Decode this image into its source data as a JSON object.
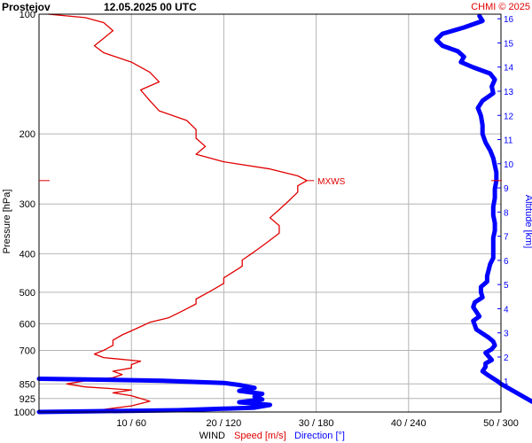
{
  "chart_data": {
    "type": "line",
    "title": {
      "station": "Prostejov",
      "datetime": "12.05.2025 00 UTC"
    },
    "credit": "CHMI © 2025",
    "y_axis": {
      "label": "Pressure [hPa]",
      "scale": "log",
      "range_hpa": [
        1000,
        100
      ],
      "ticks": [
        100,
        200,
        300,
        400,
        500,
        600,
        700,
        850,
        925,
        1000
      ]
    },
    "right_axis": {
      "label": "Altitude [km]",
      "ticks_km": [
        1,
        2,
        3,
        4,
        5,
        6,
        7,
        8,
        9,
        10,
        11,
        12,
        13,
        14,
        15,
        16
      ]
    },
    "x_axis": {
      "label_prefix": "WIND",
      "label_speed": "Speed [m/s]",
      "label_direction": "Direction [°]",
      "speed_range_ms": [
        0,
        50
      ],
      "direction_range_deg": [
        0,
        300
      ],
      "ticks": [
        "10 / 60",
        "20 / 120",
        "30 / 180",
        "40 / 240",
        "50 / 300"
      ]
    },
    "grid": true,
    "max_wind_marker": {
      "label": "MXWS",
      "pressure_hpa": 262,
      "speed_ms": 29
    },
    "colors": {
      "speed": "#e00000",
      "direction": "#0000ff",
      "credit": "#e00000",
      "grid": "#b4b4b4"
    },
    "series": [
      {
        "name": "Speed [m/s]",
        "color": "#e00000",
        "points": [
          [
            1000,
            3
          ],
          [
            985,
            7
          ],
          [
            965,
            10
          ],
          [
            940,
            12
          ],
          [
            925,
            11
          ],
          [
            910,
            10
          ],
          [
            895,
            8
          ],
          [
            880,
            10
          ],
          [
            865,
            5
          ],
          [
            850,
            3
          ],
          [
            835,
            5
          ],
          [
            820,
            8
          ],
          [
            805,
            9
          ],
          [
            790,
            8
          ],
          [
            775,
            10
          ],
          [
            760,
            10
          ],
          [
            745,
            11
          ],
          [
            730,
            7
          ],
          [
            715,
            6
          ],
          [
            700,
            7
          ],
          [
            680,
            8
          ],
          [
            660,
            8
          ],
          [
            640,
            9
          ],
          [
            625,
            10
          ],
          [
            610,
            11
          ],
          [
            595,
            12
          ],
          [
            580,
            14
          ],
          [
            565,
            15
          ],
          [
            550,
            16
          ],
          [
            535,
            17
          ],
          [
            520,
            17
          ],
          [
            505,
            18
          ],
          [
            490,
            19
          ],
          [
            475,
            20
          ],
          [
            460,
            20
          ],
          [
            445,
            21
          ],
          [
            430,
            22
          ],
          [
            415,
            22
          ],
          [
            400,
            23
          ],
          [
            385,
            24
          ],
          [
            370,
            25
          ],
          [
            355,
            26
          ],
          [
            340,
            26
          ],
          [
            325,
            25
          ],
          [
            310,
            26
          ],
          [
            295,
            27
          ],
          [
            280,
            28
          ],
          [
            270,
            28
          ],
          [
            262,
            29
          ],
          [
            255,
            28
          ],
          [
            245,
            25
          ],
          [
            235,
            20
          ],
          [
            225,
            17
          ],
          [
            215,
            18
          ],
          [
            205,
            17
          ],
          [
            195,
            17
          ],
          [
            185,
            16
          ],
          [
            175,
            13
          ],
          [
            165,
            12
          ],
          [
            155,
            11
          ],
          [
            148,
            13
          ],
          [
            140,
            12
          ],
          [
            132,
            10
          ],
          [
            125,
            7
          ],
          [
            120,
            6
          ],
          [
            115,
            7
          ],
          [
            110,
            8
          ],
          [
            105,
            7
          ],
          [
            102,
            5
          ],
          [
            100,
            1
          ]
        ]
      },
      {
        "name": "Direction [°]",
        "color": "#0000ff",
        "points": [
          [
            1000,
            0
          ],
          [
            990,
            90
          ],
          [
            975,
            140
          ],
          [
            960,
            150
          ],
          [
            945,
            130
          ],
          [
            930,
            145
          ],
          [
            915,
            140
          ],
          [
            900,
            145
          ],
          [
            885,
            130
          ],
          [
            870,
            140
          ],
          [
            855,
            130
          ],
          [
            845,
            120
          ],
          [
            835,
            80
          ],
          [
            828,
            30
          ],
          [
            825,
            0
          ]
        ]
      },
      {
        "name": "Direction [°] upper",
        "color": "#0000ff",
        "points": [
          [
            1000,
            345
          ],
          [
            990,
            330
          ],
          [
            850,
            300
          ],
          [
            838,
            298
          ],
          [
            810,
            292
          ],
          [
            790,
            288
          ],
          [
            770,
            290
          ],
          [
            755,
            290
          ],
          [
            740,
            294
          ],
          [
            725,
            292
          ],
          [
            710,
            290
          ],
          [
            695,
            294
          ],
          [
            680,
            296
          ],
          [
            665,
            295
          ],
          [
            650,
            292
          ],
          [
            635,
            288
          ],
          [
            620,
            284
          ],
          [
            605,
            283
          ],
          [
            590,
            282
          ],
          [
            575,
            286
          ],
          [
            560,
            284
          ],
          [
            545,
            282
          ],
          [
            530,
            283
          ],
          [
            515,
            288
          ],
          [
            500,
            287
          ],
          [
            485,
            287
          ],
          [
            470,
            291
          ],
          [
            455,
            291
          ],
          [
            440,
            292
          ],
          [
            425,
            293
          ],
          [
            410,
            295
          ],
          [
            395,
            295
          ],
          [
            380,
            295
          ],
          [
            365,
            295
          ],
          [
            350,
            296
          ],
          [
            335,
            296
          ],
          [
            320,
            295
          ],
          [
            305,
            295
          ],
          [
            290,
            296
          ],
          [
            275,
            296
          ],
          [
            262,
            297
          ],
          [
            250,
            297
          ],
          [
            240,
            296
          ],
          [
            230,
            295
          ],
          [
            220,
            293
          ],
          [
            210,
            290
          ],
          [
            200,
            288
          ],
          [
            190,
            288
          ],
          [
            180,
            287
          ],
          [
            172,
            285
          ],
          [
            165,
            288
          ],
          [
            158,
            295
          ],
          [
            152,
            294
          ],
          [
            146,
            296
          ],
          [
            141,
            293
          ],
          [
            136,
            282
          ],
          [
            132,
            274
          ],
          [
            128,
            276
          ],
          [
            124,
            272
          ],
          [
            120,
            262
          ],
          [
            116,
            258
          ],
          [
            112,
            262
          ],
          [
            108,
            276
          ],
          [
            104,
            288
          ],
          [
            101,
            286
          ]
        ]
      }
    ]
  }
}
